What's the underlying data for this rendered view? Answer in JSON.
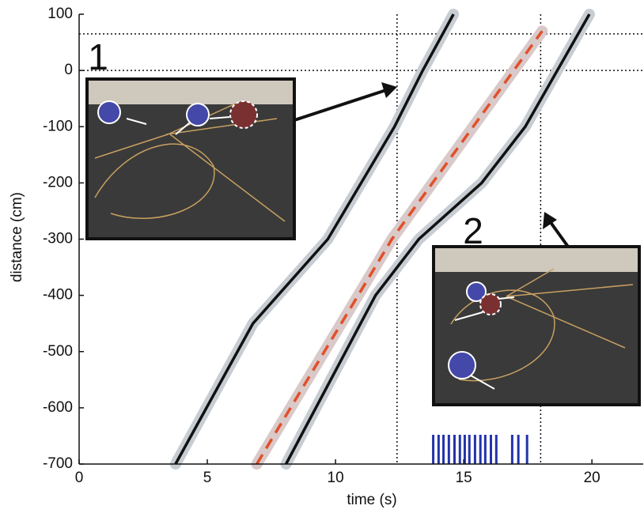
{
  "chart_data": {
    "type": "line",
    "xlabel": "time (s)",
    "ylabel": "distance (cm)",
    "xlim": [
      0,
      22
    ],
    "ylim": [
      -700,
      100
    ],
    "xticks": [
      0,
      5,
      10,
      15,
      20
    ],
    "yticks": [
      -700,
      -600,
      -500,
      -400,
      -300,
      -200,
      -100,
      0,
      100
    ],
    "series": [
      {
        "color": "#111111",
        "dash": false,
        "x": [
          3.76,
          6.78,
          9.7,
          11.0,
          12.3,
          13.4,
          14.6
        ],
        "values": [
          -700,
          -450,
          -300,
          -200,
          -100,
          0,
          100
        ]
      },
      {
        "color": "#e0502a",
        "dash": true,
        "x": [
          6.93,
          12.2,
          18.06
        ],
        "values": [
          -700,
          -300,
          70
        ]
      },
      {
        "color": "#111111",
        "dash": false,
        "x": [
          8.07,
          11.56,
          13.25,
          15.7,
          17.4,
          18.65,
          19.9
        ],
        "values": [
          -700,
          -400,
          -300,
          -200,
          -100,
          0,
          100
        ]
      }
    ],
    "hlines": [
      65,
      0
    ],
    "vlines": [
      12.4,
      18.0
    ],
    "events": {
      "color": "#2233aa",
      "x": [
        13.81,
        14.02,
        14.21,
        14.42,
        14.64,
        14.85,
        15.04,
        15.22,
        15.44,
        15.65,
        15.84,
        16.06,
        16.27,
        16.89,
        17.13,
        17.47
      ]
    },
    "annotations": [
      "1",
      "2"
    ]
  }
}
